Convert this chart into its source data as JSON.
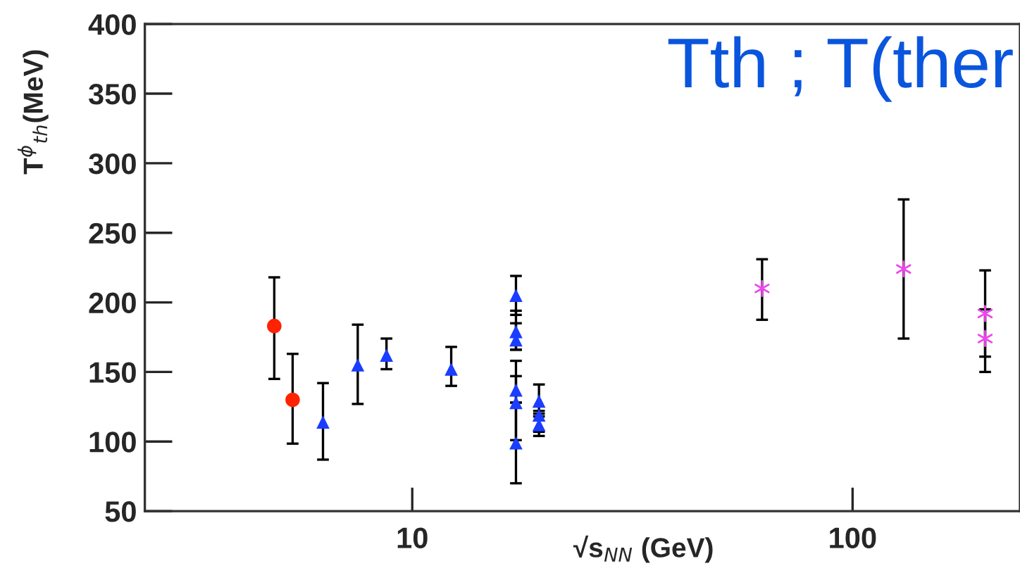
{
  "chart_data": {
    "type": "scatter",
    "xlabel": "√s$_{NN}$ (GeV)",
    "ylabel": "T$^{ϕ}$$_{th}$(MeV)",
    "annotations": [
      "Tth ; T(ther"
    ],
    "log": "x",
    "xlim": [
      2.47,
      240
    ],
    "xticks": [
      10,
      100
    ],
    "ylim": [
      50,
      400
    ],
    "yticks": [
      50,
      100,
      150,
      200,
      250,
      300,
      350,
      400
    ],
    "grid": false,
    "series": [
      {
        "color": "#ff2200",
        "marker": "circle",
        "x": [
          4.86,
          5.35
        ],
        "values": [
          183,
          130
        ],
        "errors": [
          [
            145,
            218
          ],
          [
            98.5,
            163
          ]
        ]
      },
      {
        "color": "#1a3dff",
        "marker": "triangle",
        "x": [
          6.27,
          7.52,
          8.74,
          12.26,
          17.2,
          17.2,
          17.2,
          17.2,
          17.2,
          17.2,
          19.4,
          19.4,
          19.4
        ],
        "values": [
          114,
          155,
          162,
          152,
          205,
          179,
          173,
          137,
          128,
          99,
          129,
          119,
          112
        ],
        "errors": [
          [
            87,
            142
          ],
          [
            127,
            184
          ],
          [
            152,
            174
          ],
          [
            140,
            168
          ],
          [
            191,
            219
          ],
          [
            166,
            194
          ],
          [
            166,
            185
          ],
          [
            128,
            147
          ],
          [
            101,
            158
          ],
          [
            70,
            128
          ],
          [
            118,
            141
          ],
          [
            107,
            122
          ],
          [
            104,
            120
          ]
        ]
      },
      {
        "color": "#ee44ee",
        "marker": "cross",
        "x": [
          62.3,
          130.6,
          200,
          200
        ],
        "values": [
          210,
          224,
          192,
          174
        ],
        "errors": [
          [
            187.5,
            231
          ],
          [
            174,
            274
          ],
          [
            161,
            223
          ],
          [
            150,
            195
          ]
        ]
      }
    ]
  }
}
